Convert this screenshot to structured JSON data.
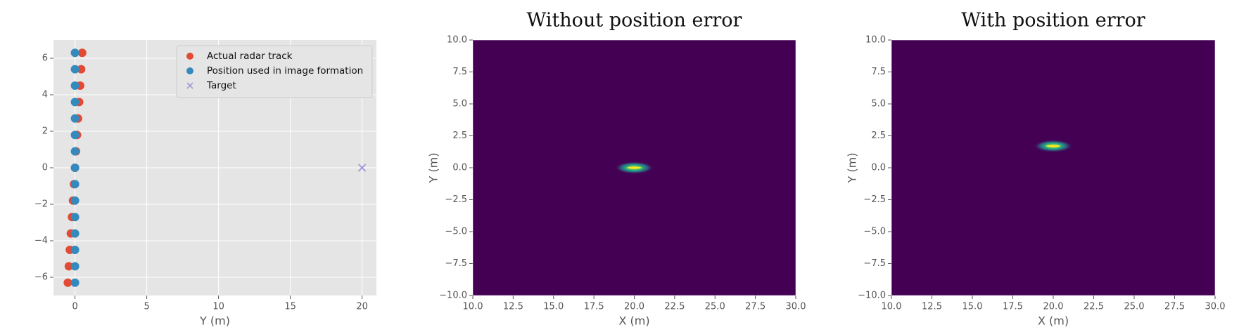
{
  "chart_data": [
    {
      "type": "scatter",
      "x_label": "Y (m)",
      "xlim": [
        -1.5,
        21
      ],
      "ylim": [
        -7,
        7
      ],
      "xticks": [
        0,
        5,
        10,
        15,
        20
      ],
      "yticks": [
        {
          "value": -6,
          "label": "−6"
        },
        {
          "value": -4,
          "label": "−4"
        },
        {
          "value": -2,
          "label": "−2"
        },
        0,
        2,
        4,
        6
      ],
      "grid": true,
      "legend": "upper right",
      "series": [
        {
          "name": "Actual radar track",
          "color": "#E24A33",
          "marker": "circle",
          "x": [
            -0.5,
            -0.43,
            -0.36,
            -0.29,
            -0.21,
            -0.14,
            -0.07,
            0,
            0.07,
            0.14,
            0.21,
            0.29,
            0.36,
            0.43,
            0.5
          ],
          "values": [
            -6.3,
            -5.4,
            -4.5,
            -3.6,
            -2.7,
            -1.8,
            -0.9,
            0,
            0.9,
            1.8,
            2.7,
            3.6,
            4.5,
            5.4,
            6.3
          ]
        },
        {
          "name": "Position used in image formation",
          "color": "#348ABD",
          "marker": "circle",
          "x": [
            0,
            0,
            0,
            0,
            0,
            0,
            0,
            0,
            0,
            0,
            0,
            0,
            0,
            0,
            0
          ],
          "values": [
            -6.3,
            -5.4,
            -4.5,
            -3.6,
            -2.7,
            -1.8,
            -0.9,
            0,
            0.9,
            1.8,
            2.7,
            3.6,
            4.5,
            5.4,
            6.3
          ]
        },
        {
          "name": "Target",
          "color": "#988ED5",
          "marker": "x",
          "x": [
            20
          ],
          "values": [
            0
          ]
        }
      ]
    },
    {
      "type": "image",
      "title": "Without position error",
      "x_label": "X (m)",
      "y_label": "Y (m)",
      "xlim": [
        10,
        30
      ],
      "ylim": [
        -10,
        10
      ],
      "xticks": [
        {
          "value": 10,
          "label": "10.0"
        },
        {
          "value": 12.5,
          "label": "12.5"
        },
        {
          "value": 15,
          "label": "15.0"
        },
        {
          "value": 17.5,
          "label": "17.5"
        },
        {
          "value": 20,
          "label": "20.0"
        },
        {
          "value": 22.5,
          "label": "22.5"
        },
        {
          "value": 25,
          "label": "25.0"
        },
        {
          "value": 27.5,
          "label": "27.5"
        },
        {
          "value": 30,
          "label": "30.0"
        }
      ],
      "yticks": [
        {
          "value": -10,
          "label": "−10.0"
        },
        {
          "value": -7.5,
          "label": "−7.5"
        },
        {
          "value": -5,
          "label": "−5.0"
        },
        {
          "value": -2.5,
          "label": "−2.5"
        },
        {
          "value": 0,
          "label": "0.0"
        },
        {
          "value": 2.5,
          "label": "2.5"
        },
        {
          "value": 5,
          "label": "5.0"
        },
        {
          "value": 7.5,
          "label": "7.5"
        },
        {
          "value": 10,
          "label": "10.0"
        }
      ],
      "background": "#440154",
      "peak": {
        "x": 20,
        "y": 0
      }
    },
    {
      "type": "image",
      "title": "With position error",
      "x_label": "X (m)",
      "y_label": "Y (m)",
      "xlim": [
        10,
        30
      ],
      "ylim": [
        -10,
        10
      ],
      "xticks": [
        {
          "value": 10,
          "label": "10.0"
        },
        {
          "value": 12.5,
          "label": "12.5"
        },
        {
          "value": 15,
          "label": "15.0"
        },
        {
          "value": 17.5,
          "label": "17.5"
        },
        {
          "value": 20,
          "label": "20.0"
        },
        {
          "value": 22.5,
          "label": "22.5"
        },
        {
          "value": 25,
          "label": "25.0"
        },
        {
          "value": 27.5,
          "label": "27.5"
        },
        {
          "value": 30,
          "label": "30.0"
        }
      ],
      "yticks": [
        {
          "value": -10,
          "label": "−10.0"
        },
        {
          "value": -7.5,
          "label": "−7.5"
        },
        {
          "value": -5,
          "label": "−5.0"
        },
        {
          "value": -2.5,
          "label": "−2.5"
        },
        {
          "value": 0,
          "label": "0.0"
        },
        {
          "value": 2.5,
          "label": "2.5"
        },
        {
          "value": 5,
          "label": "5.0"
        },
        {
          "value": 7.5,
          "label": "7.5"
        },
        {
          "value": 10,
          "label": "10.0"
        }
      ],
      "background": "#440154",
      "peak": {
        "x": 20,
        "y": 1.7
      }
    }
  ]
}
